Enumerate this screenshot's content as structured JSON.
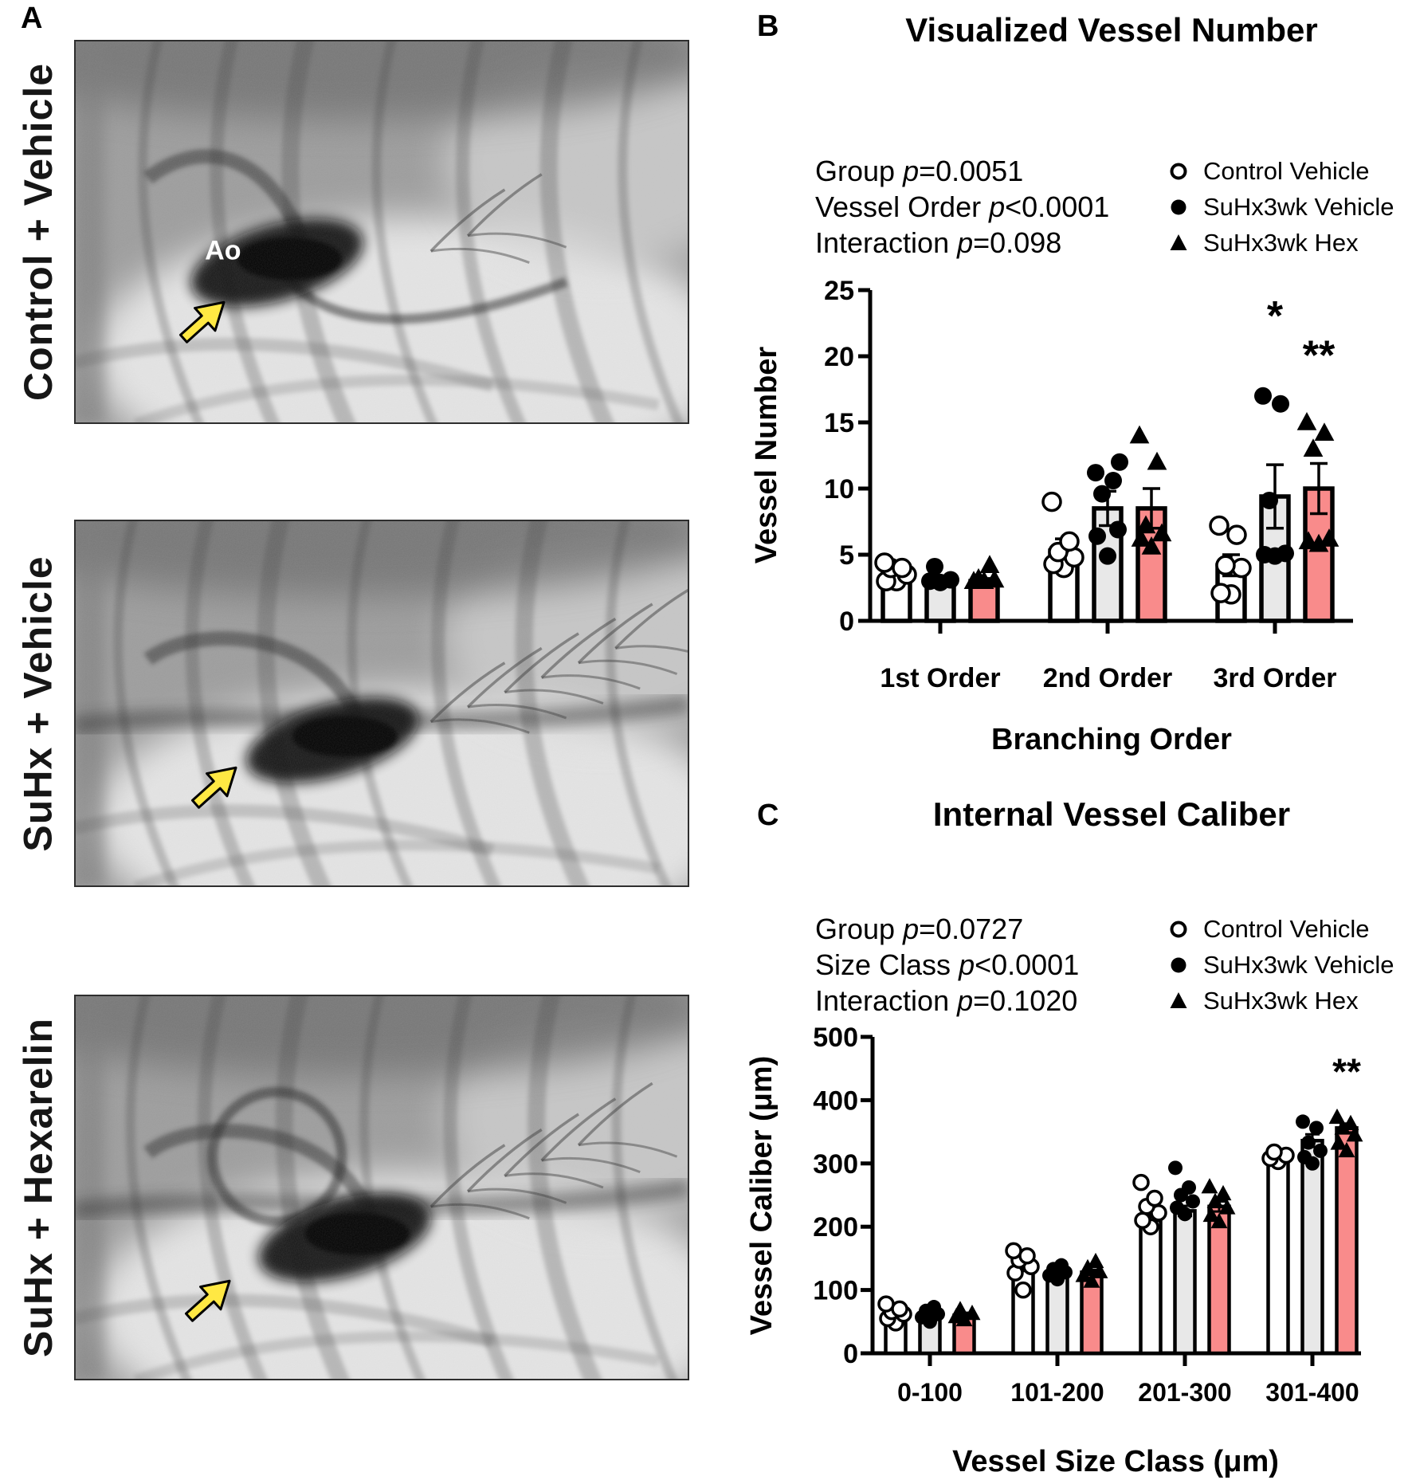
{
  "panel_a": {
    "label": "A",
    "images": [
      {
        "label": "Control + Vehicle",
        "annotation": "Ao",
        "has_arrow": true
      },
      {
        "label": "SuHx + Vehicle",
        "annotation": "",
        "has_arrow": true
      },
      {
        "label": "SuHx + Hexarelin",
        "annotation": "",
        "has_arrow": true
      }
    ],
    "arrow_color": "#ffe843"
  },
  "panel_b": {
    "label": "B",
    "title": "Visualized Vessel Number",
    "stats": [
      {
        "pre": "Group ",
        "pvar": "p",
        "post": "=0.0051"
      },
      {
        "pre": "Vessel Order ",
        "pvar": "p",
        "post": "<0.0001"
      },
      {
        "pre": "Interaction ",
        "pvar": "p",
        "post": "=0.098"
      }
    ],
    "legend": [
      {
        "marker": "open-circle",
        "label": "Control Vehicle"
      },
      {
        "marker": "filled-circle",
        "label": "SuHx3wk Vehicle"
      },
      {
        "marker": "filled-triangle",
        "label": "SuHx3wk Hex"
      }
    ]
  },
  "panel_c": {
    "label": "C",
    "title": "Internal Vessel Caliber",
    "stats": [
      {
        "pre": "Group ",
        "pvar": "p",
        "post": "=0.0727"
      },
      {
        "pre": "Size Class ",
        "pvar": "p",
        "post": "<0.0001"
      },
      {
        "pre": "Interaction ",
        "pvar": "p",
        "post": "=0.1020"
      }
    ],
    "legend": [
      {
        "marker": "open-circle",
        "label": "Control Vehicle"
      },
      {
        "marker": "filled-circle",
        "label": "SuHx3wk Vehicle"
      },
      {
        "marker": "filled-triangle",
        "label": "SuHx3wk Hex"
      }
    ]
  },
  "chart_data": [
    {
      "id": "B",
      "type": "bar",
      "title": "Visualized Vessel Number",
      "xlabel": "Branching Order",
      "ylabel": "Vessel Number",
      "ylim": [
        0,
        25
      ],
      "ytick_step": 5,
      "grid": false,
      "legend_position": "top-right",
      "categories": [
        "1st Order",
        "2nd Order",
        "3rd Order"
      ],
      "series": [
        {
          "name": "Control Vehicle",
          "fill": "#ffffff",
          "marker": "open-circle",
          "values": [
            3.9,
            5.3,
            4.2
          ],
          "sem": [
            0.3,
            0.9,
            0.8
          ],
          "points": [
            [
              3,
              3,
              3.5,
              4,
              4,
              4.4
            ],
            [
              4,
              4.3,
              4.8,
              5.2,
              6,
              9
            ],
            [
              2,
              2.1,
              4,
              4.2,
              6.5,
              7.2
            ]
          ]
        },
        {
          "name": "SuHx3wk Vehicle",
          "fill": "#e8e8e8",
          "marker": "filled-circle",
          "values": [
            2.9,
            8.5,
            9.4
          ],
          "sem": [
            0.25,
            1.3,
            2.4
          ],
          "points": [
            [
              2.9,
              3,
              3.1,
              4.1
            ],
            [
              4.9,
              6.4,
              6.9,
              9.6,
              10.6,
              11.2,
              12
            ],
            [
              4.9,
              5,
              5.1,
              9.1,
              16.4,
              17
            ]
          ]
        },
        {
          "name": "SuHx3wk Hex",
          "fill": "#f98b8b",
          "marker": "filled-triangle",
          "values": [
            3,
            8.5,
            10
          ],
          "sem": [
            0.2,
            1.5,
            1.9
          ],
          "points": [
            [
              3,
              3,
              3.1,
              3.2,
              4.2
            ],
            [
              5.6,
              6.2,
              6.6,
              7.2,
              12,
              14
            ],
            [
              5.8,
              6,
              6.2,
              13,
              14.2,
              15
            ]
          ]
        }
      ],
      "significance": [
        {
          "category_index": 2,
          "series_index": 1,
          "label": "*",
          "y_value": 22
        },
        {
          "category_index": 2,
          "series_index": 2,
          "label": "**",
          "y_value": 19
        }
      ]
    },
    {
      "id": "C",
      "type": "bar",
      "title": "Internal Vessel Caliber",
      "xlabel": "Vessel Size Class (μm)",
      "ylabel": "Vessel Caliber (μm)",
      "ylim": [
        0,
        500
      ],
      "ytick_step": 100,
      "grid": false,
      "legend_position": "top-right",
      "categories": [
        "0-100",
        "101-200",
        "201-300",
        "301-400"
      ],
      "series": [
        {
          "name": "Control Vehicle",
          "fill": "#ffffff",
          "marker": "open-circle",
          "values": [
            62,
            135,
            210,
            312
          ],
          "sem": [
            4,
            5,
            8,
            4
          ],
          "points": [
            [
              48,
              55,
              62,
              66,
              70,
              78
            ],
            [
              100,
              127,
              137,
              147,
              154,
              162
            ],
            [
              200,
              210,
              222,
              232,
              245,
              270
            ],
            [
              303,
              308,
              313,
              318
            ]
          ]
        },
        {
          "name": "SuHx3wk Vehicle",
          "fill": "#e8e8e8",
          "marker": "filled-circle",
          "values": [
            55,
            124,
            225,
            336
          ],
          "sem": [
            4,
            3,
            8,
            10
          ],
          "points": [
            [
              50,
              57,
              62,
              67,
              73
            ],
            [
              117,
              123,
              128,
              133,
              139
            ],
            [
              220,
              230,
              240,
              250,
              262,
              293
            ],
            [
              300,
              310,
              320,
              333,
              356,
              366
            ]
          ]
        },
        {
          "name": "SuHx3wk Hex",
          "fill": "#f98b8b",
          "marker": "filled-triangle",
          "values": [
            60,
            128,
            232,
            356
          ],
          "sem": [
            4,
            4,
            8,
            7
          ],
          "points": [
            [
              53,
              58,
              63,
              69
            ],
            [
              114,
              123,
              129,
              135,
              145
            ],
            [
              208,
              218,
              230,
              240,
              252,
              263
            ],
            [
              320,
              332,
              345,
              356,
              363,
              373
            ]
          ]
        }
      ],
      "significance": [
        {
          "category_index": 3,
          "series_index": 2,
          "label": "**",
          "y_value": 425
        }
      ]
    }
  ]
}
